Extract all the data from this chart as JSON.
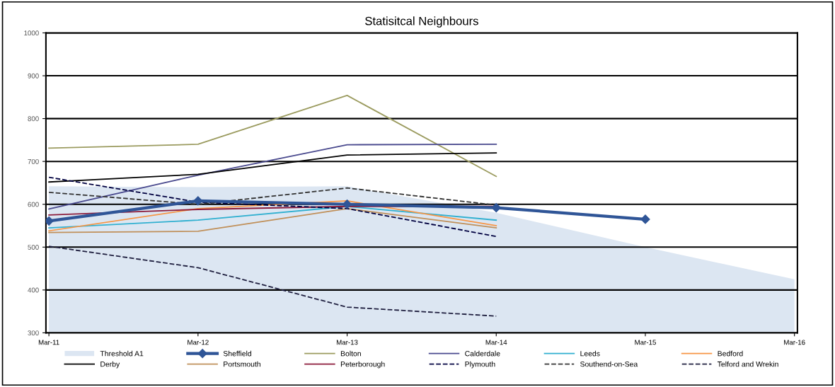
{
  "chart_data": {
    "type": "line",
    "title": "Statisitcal Neighbours",
    "categories": [
      "Mar-11",
      "Mar-12",
      "Mar-13",
      "Mar-14",
      "Mar-15",
      "Mar-16"
    ],
    "ylim": [
      300,
      1000
    ],
    "yticks": [
      300,
      400,
      500,
      600,
      700,
      800,
      900,
      1000
    ],
    "grid": "y",
    "legend": "bottom",
    "series": [
      {
        "name": "Threshold A1",
        "type": "area",
        "color": "#dce6f2",
        "values": [
          642,
          640,
          642,
          580,
          500,
          425
        ]
      },
      {
        "name": "Sheffield",
        "color": "#2f5597",
        "marker": "diamond",
        "values": [
          561,
          608,
          600,
          592,
          565,
          null
        ]
      },
      {
        "name": "Bolton",
        "color": "#9b9b5f",
        "values": [
          731,
          740,
          854,
          665,
          null,
          null
        ]
      },
      {
        "name": "Calderdale",
        "color": "#4b4b8f",
        "values": [
          589,
          668,
          739,
          740,
          null,
          null
        ]
      },
      {
        "name": "Leeds",
        "color": "#31b0d0",
        "values": [
          545,
          563,
          595,
          563,
          null,
          null
        ]
      },
      {
        "name": "Bedford",
        "color": "#f79646",
        "values": [
          538,
          590,
          608,
          550,
          null,
          null
        ]
      },
      {
        "name": "Derby",
        "color": "#000000",
        "values": [
          652,
          670,
          715,
          720,
          null,
          null
        ]
      },
      {
        "name": "Portsmouth",
        "color": "#c0905a",
        "values": [
          534,
          537,
          590,
          545,
          null,
          null
        ]
      },
      {
        "name": "Peterborough",
        "color": "#8b1a3a",
        "values": [
          575,
          588,
          595,
          595,
          null,
          null
        ]
      },
      {
        "name": "Plymouth",
        "color": "#000040",
        "line_style": "dashed",
        "values": [
          663,
          605,
          590,
          525,
          null,
          null
        ]
      },
      {
        "name": "Southend-on-Sea",
        "color": "#333333",
        "line_style": "dashed",
        "values": [
          628,
          600,
          638,
          598,
          null,
          null
        ]
      },
      {
        "name": "Telford and Wrekin",
        "color": "#1f1f3f",
        "line_style": "dashed",
        "values": [
          502,
          452,
          360,
          339,
          null,
          null
        ]
      }
    ]
  }
}
